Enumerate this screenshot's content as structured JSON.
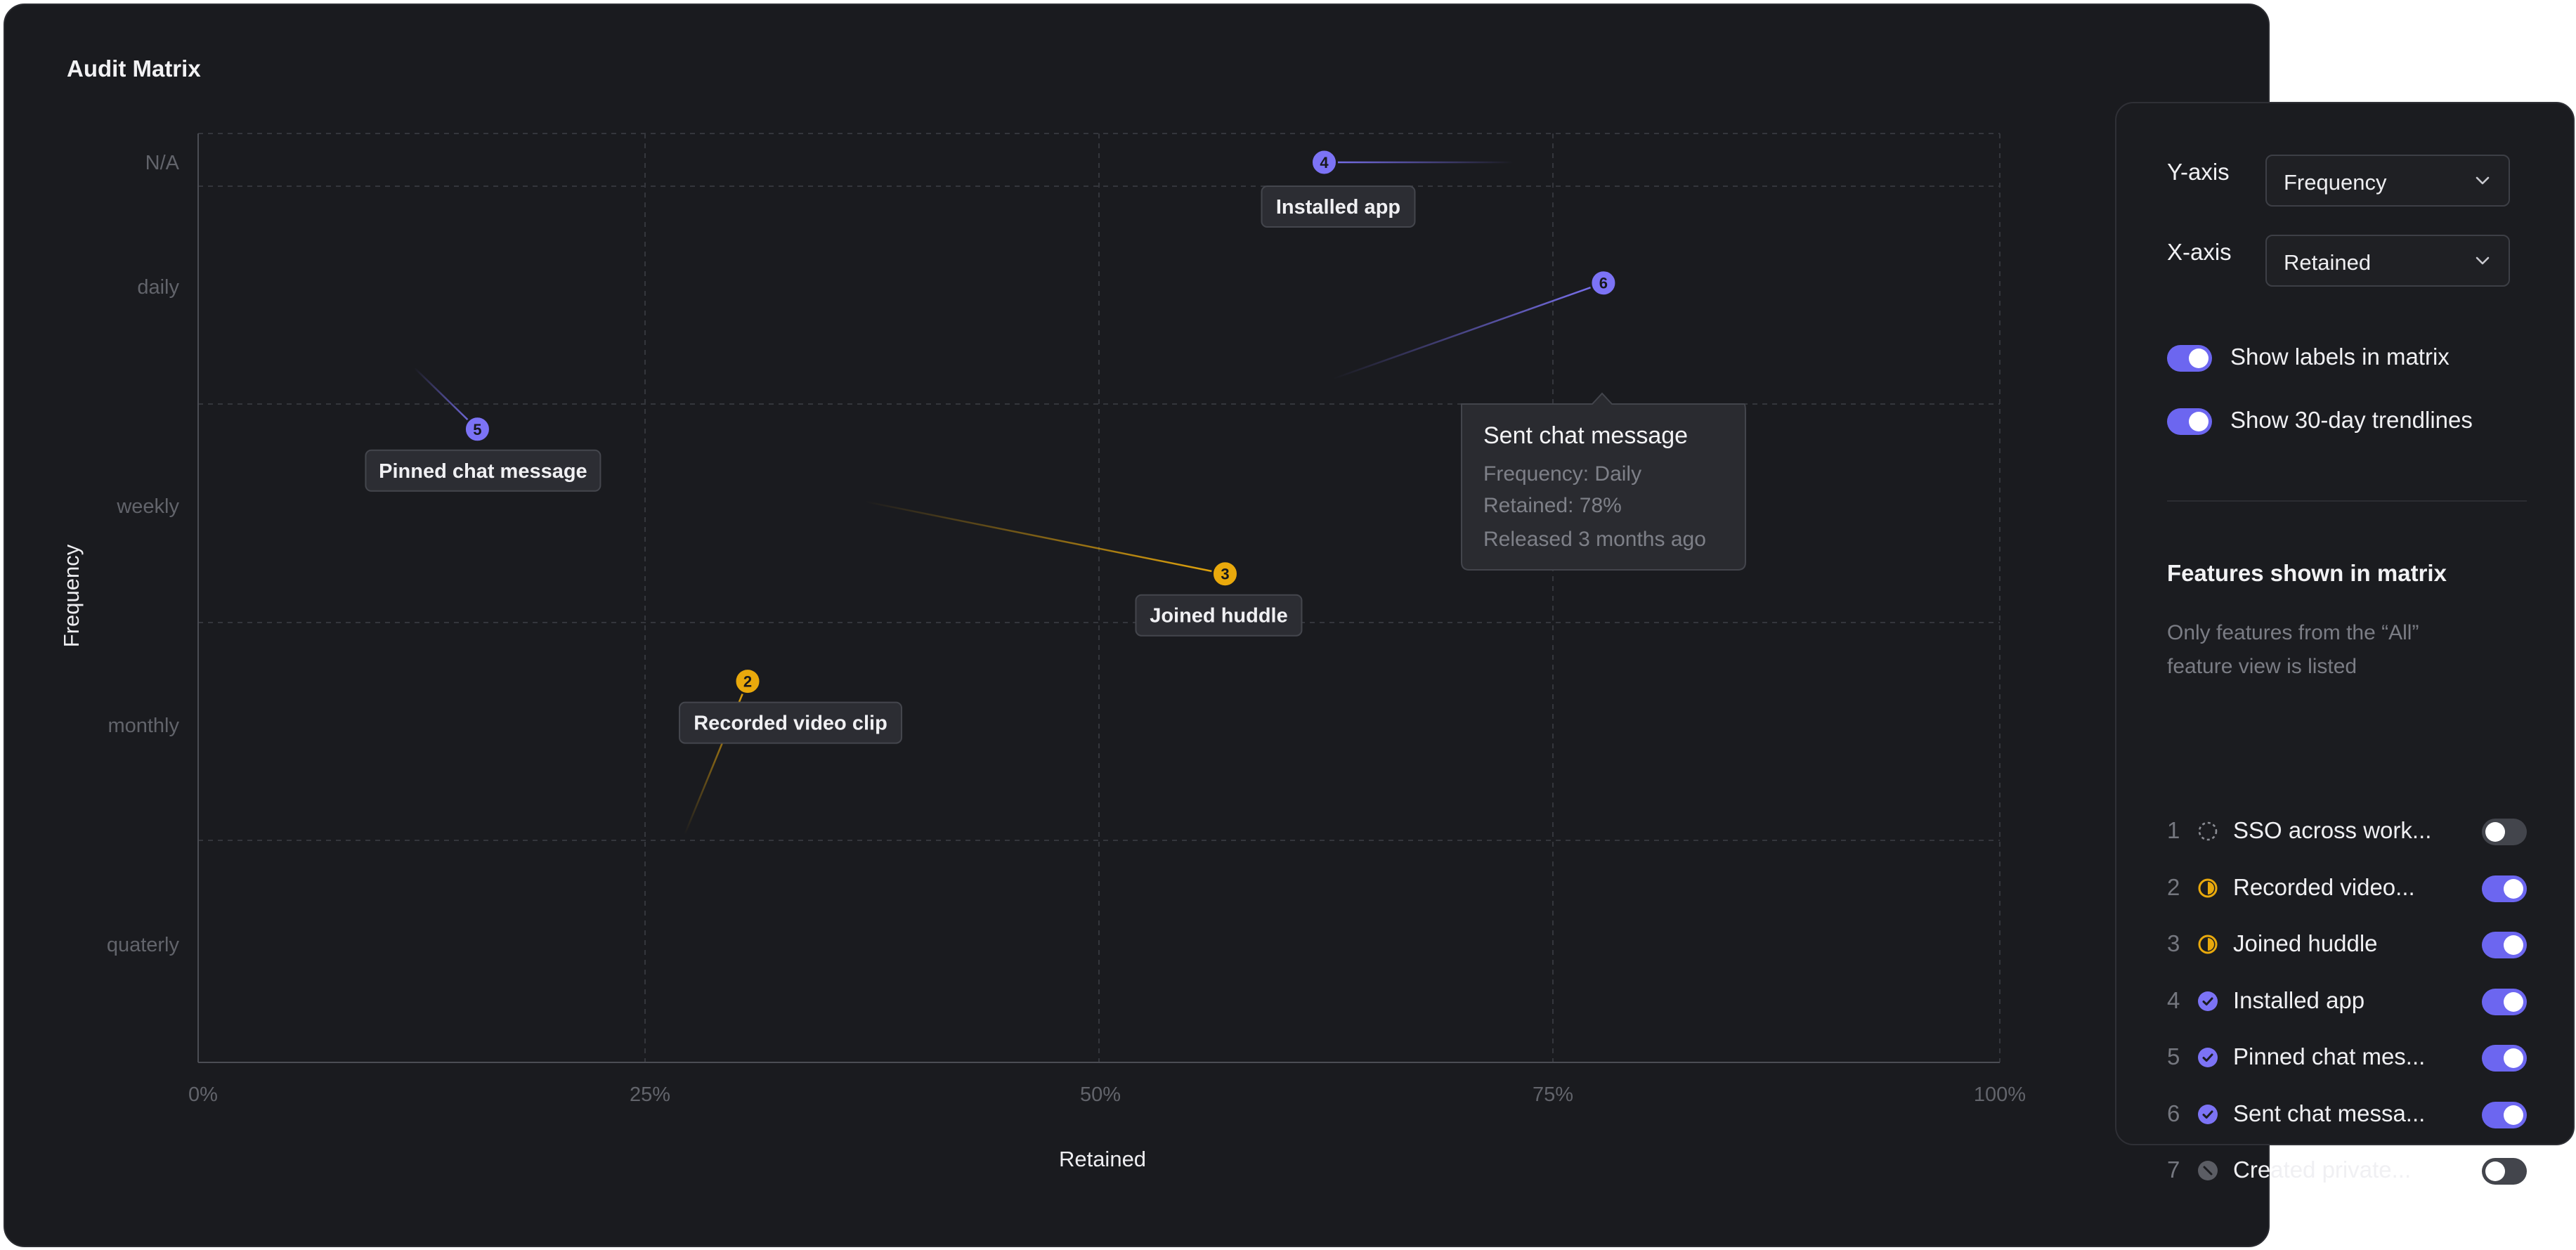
{
  "matrix": {
    "title": "Audit Matrix",
    "y_axis_title": "Frequency",
    "x_axis_title": "Retained",
    "y_categories": [
      "N/A",
      "daily",
      "weekly",
      "monthly",
      "quaterly"
    ],
    "x_ticks": [
      "0%",
      "25%",
      "50%",
      "75%",
      "100%"
    ]
  },
  "chart_data": {
    "type": "scatter",
    "xlabel": "Retained",
    "ylabel": "Frequency",
    "xlim": [
      0,
      100
    ],
    "x_tick_labels": [
      "0%",
      "25%",
      "50%",
      "75%",
      "100%"
    ],
    "y_categories": [
      "N/A",
      "daily",
      "weekly",
      "monthly",
      "quaterly"
    ],
    "grid": true,
    "points": [
      {
        "id": 4,
        "num": "4",
        "label": "Installed app",
        "x": 62.5,
        "y_level": 0,
        "color": "#7c73f5",
        "trend_to": {
          "x": 73,
          "y_level": 0
        }
      },
      {
        "id": 6,
        "num": "6",
        "label": "Sent chat message",
        "x": 78,
        "y_level": 0.97,
        "color": "#7c73f5",
        "trend_to": {
          "x": 63,
          "y_level": 1.42
        }
      },
      {
        "id": 5,
        "num": "5",
        "label": "Pinned chat message",
        "x": 15.5,
        "y_level": 1.65,
        "color": "#7c73f5",
        "trend_to": {
          "x": 12,
          "y_level": 1.37
        }
      },
      {
        "id": 3,
        "num": "3",
        "label": "Joined huddle",
        "x": 57,
        "y_level": 2.31,
        "color": "#e9a90c",
        "trend_to": {
          "x": 37,
          "y_level": 1.98
        }
      },
      {
        "id": 2,
        "num": "2",
        "label": "Recorded video clip",
        "x": 30.5,
        "y_level": 2.8,
        "color": "#e9a90c",
        "trend_to": {
          "x": 27,
          "y_level": 3.5
        }
      }
    ]
  },
  "tooltip": {
    "title": "Sent chat message",
    "frequency": "Frequency: Daily",
    "retained": "Retained: 78%",
    "released": "Released 3 months ago"
  },
  "settings": {
    "y_axis_label": "Y-axis",
    "y_axis_value": "Frequency",
    "x_axis_label": "X-axis",
    "x_axis_value": "Retained",
    "show_labels": {
      "label": "Show labels in matrix",
      "on": true
    },
    "show_trendlines": {
      "label": "Show 30-day trendlines",
      "on": true
    },
    "features_heading": "Features shown in matrix",
    "features_note": "Only features from the “All” feature view is listed",
    "features": [
      {
        "index": "1",
        "name": "SSO across work...",
        "status": "not-started",
        "on": false
      },
      {
        "index": "2",
        "name": "Recorded video...",
        "status": "in-progress",
        "on": true
      },
      {
        "index": "3",
        "name": "Joined huddle",
        "status": "in-progress",
        "on": true
      },
      {
        "index": "4",
        "name": "Installed app",
        "status": "done",
        "on": true
      },
      {
        "index": "5",
        "name": "Pinned chat mes...",
        "status": "done",
        "on": true
      },
      {
        "index": "6",
        "name": "Sent chat messa...",
        "status": "done",
        "on": true
      },
      {
        "index": "7",
        "name": "Created private...",
        "status": "cancelled",
        "on": false
      }
    ]
  },
  "colors": {
    "accent": "#6c66f0",
    "in_progress": "#e9a90c",
    "done": "#7c73f5",
    "muted": "#5b5d64"
  }
}
